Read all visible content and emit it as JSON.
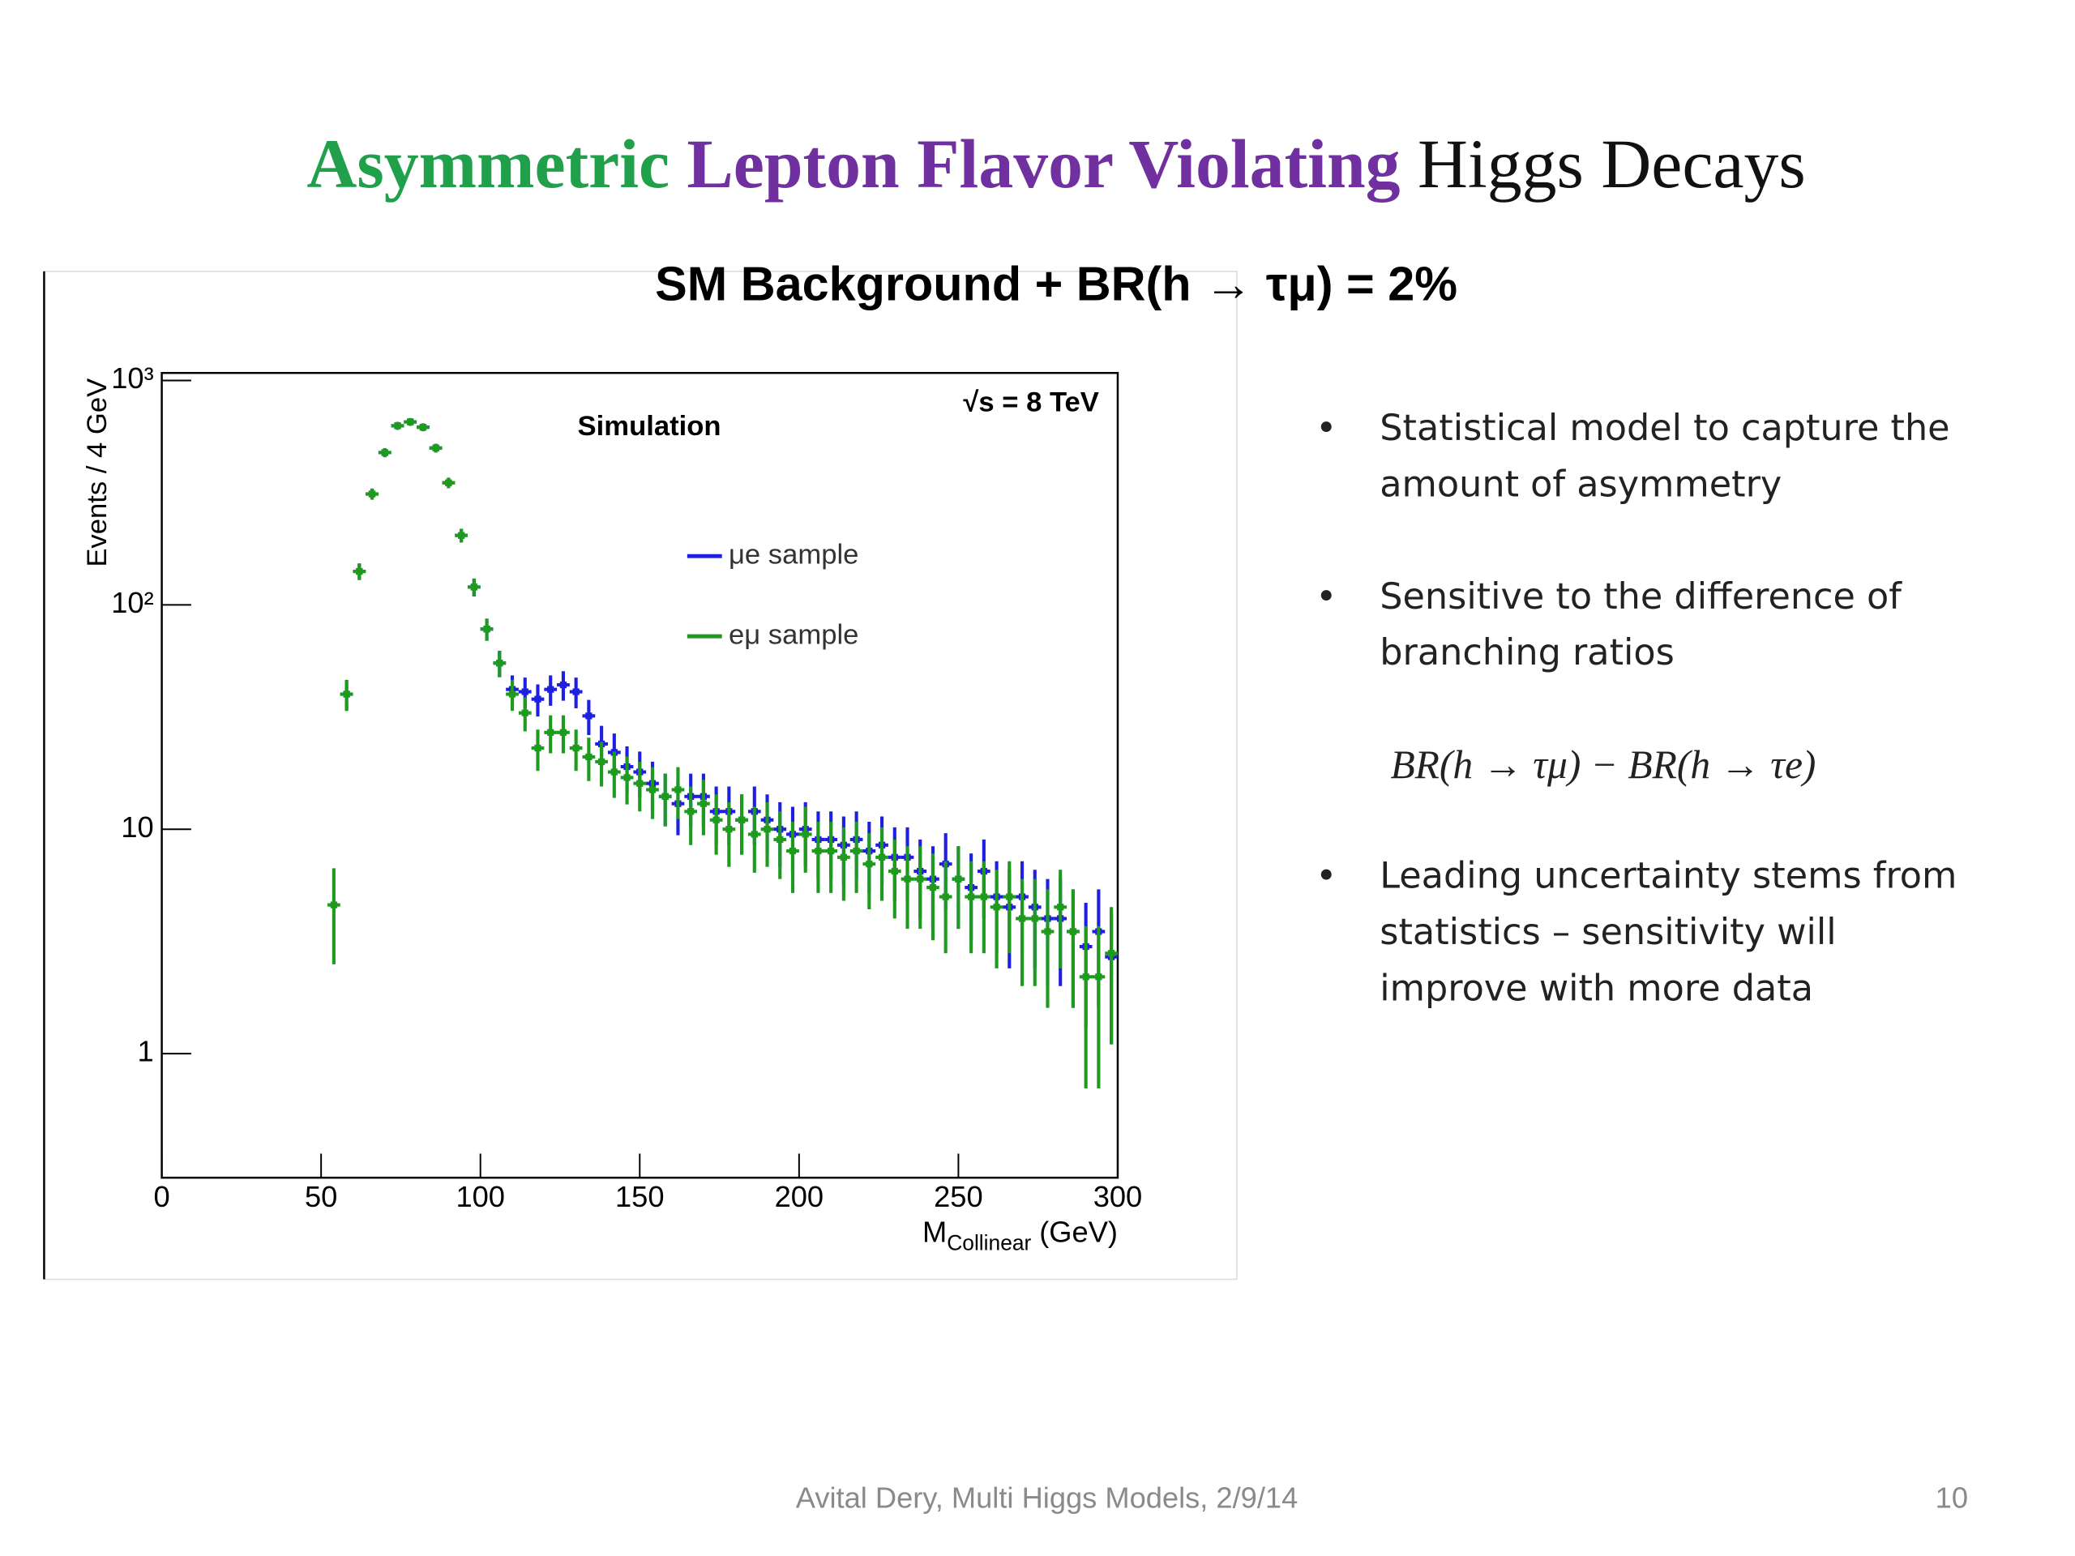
{
  "slide": {
    "title_part1": "Asymmetric",
    "title_part2": "Lepton Flavor Violating",
    "title_part3": "Higgs Decays",
    "subtitle": "SM Background  + BR(h → τμ) = 2%",
    "bullets": [
      [
        "Statistical model to capture the",
        "amount of asymmetry"
      ],
      [
        "Sensitive to the difference of",
        "branching ratios"
      ],
      [
        "Leading uncertainty stems from",
        "statistics – sensitivity will",
        "improve with more data"
      ]
    ],
    "bullet_mark": "•",
    "formula": "BR(h → τμ) − BR(h → τe)",
    "footer": "Avital Dery, Multi Higgs Models, 2/9/14",
    "page_number": "10"
  },
  "chart_data": {
    "type": "errorbar",
    "label_simulation": "Simulation",
    "label_energy": "√s = 8 TeV",
    "y_label": "Events / 4 GeV",
    "x_label": "M",
    "x_label_sub": "Collinear",
    "x_label_unit": "(GeV)",
    "log_y": true,
    "xlim": [
      0,
      300
    ],
    "xticks": [
      0,
      50,
      100,
      150,
      200,
      250,
      300
    ],
    "ylim": [
      0.28,
      1080
    ],
    "yticks": [
      1,
      10,
      {
        "value": 100,
        "label": "10²"
      },
      {
        "value": 1000,
        "label": "10³"
      }
    ],
    "x": [
      54,
      58,
      62,
      66,
      70,
      74,
      78,
      82,
      86,
      90,
      94,
      98,
      102,
      106,
      110,
      114,
      118,
      122,
      126,
      130,
      134,
      138,
      142,
      146,
      150,
      154,
      158,
      162,
      166,
      170,
      174,
      178,
      182,
      186,
      190,
      194,
      198,
      202,
      206,
      210,
      214,
      218,
      222,
      226,
      230,
      234,
      238,
      242,
      246,
      250,
      254,
      258,
      262,
      266,
      270,
      274,
      278,
      282,
      286,
      290,
      294,
      298
    ],
    "series": [
      {
        "name": "μe sample",
        "color": "#1f1fe0",
        "values": [
          null,
          40,
          141,
          312,
          477,
          628,
          654,
          619,
          500,
          350,
          204,
          120,
          78,
          55,
          42,
          41,
          38,
          42,
          44,
          41,
          32,
          24,
          22,
          19,
          18,
          16,
          14,
          13,
          14,
          14,
          12,
          12,
          11,
          12,
          11,
          10,
          9.5,
          10,
          9,
          9,
          8.5,
          9,
          8,
          8.5,
          7.5,
          7.5,
          6.5,
          6,
          7,
          6,
          5.5,
          6.5,
          5,
          4.5,
          5,
          4.5,
          4,
          4,
          3.5,
          3,
          3.5,
          2.7
        ],
        "errors": [
          null,
          6.3,
          11.9,
          17.7,
          21.8,
          25,
          25.6,
          24.9,
          22.4,
          18.7,
          14.3,
          11,
          8.8,
          7.4,
          6.5,
          6.4,
          6.2,
          6.5,
          6.6,
          6.4,
          5.7,
          4.9,
          4.7,
          4.4,
          4.2,
          4,
          3.7,
          3.6,
          3.7,
          3.7,
          3.5,
          3.5,
          3.3,
          3.5,
          3.3,
          3.2,
          3.1,
          3.2,
          3,
          3,
          2.9,
          3,
          2.8,
          2.9,
          2.7,
          2.7,
          2.5,
          2.4,
          2.6,
          2.4,
          2.3,
          2.5,
          2.2,
          2.1,
          2.2,
          2.1,
          2,
          2,
          1.9,
          1.7,
          1.9,
          1.6
        ]
      },
      {
        "name": "eμ sample",
        "color": "#1e9a1e",
        "values": [
          4.6,
          40,
          141,
          312,
          477,
          628,
          654,
          619,
          500,
          350,
          204,
          120,
          78,
          55,
          40,
          33,
          23,
          27,
          27,
          23,
          21,
          20,
          18,
          17,
          16,
          15,
          14,
          15,
          12,
          13,
          11,
          10,
          11,
          9.5,
          10,
          9,
          8,
          9.5,
          8,
          8,
          7.5,
          8,
          7,
          7.5,
          6.5,
          6,
          6,
          5.5,
          5,
          6,
          5,
          5,
          4.5,
          5,
          4,
          4,
          3.5,
          4.5,
          3.5,
          2.2,
          2.2,
          2.8
        ],
        "errors": [
          2.1,
          6.3,
          11.9,
          17.7,
          21.8,
          25,
          25.6,
          24.9,
          22.4,
          18.7,
          14.3,
          11,
          8.8,
          7.4,
          6.3,
          5.7,
          4.8,
          5.2,
          5.2,
          4.8,
          4.6,
          4.5,
          4.2,
          4.1,
          4,
          3.9,
          3.7,
          3.9,
          3.5,
          3.6,
          3.3,
          3.2,
          3.3,
          3.1,
          3.2,
          3,
          2.8,
          3.1,
          2.8,
          2.8,
          2.7,
          2.8,
          2.6,
          2.7,
          2.5,
          2.4,
          2.4,
          2.3,
          2.2,
          2.4,
          2.2,
          2.2,
          2.1,
          2.2,
          2,
          2,
          1.9,
          2.1,
          1.9,
          1.5,
          1.5,
          1.7
        ]
      }
    ]
  }
}
